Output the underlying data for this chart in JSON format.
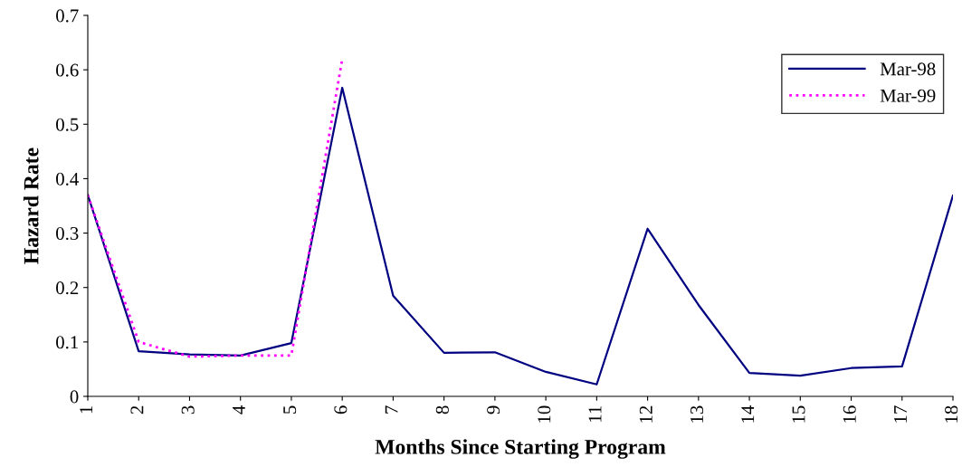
{
  "chart_data": {
    "type": "line",
    "xlabel": "Months Since Starting Program",
    "ylabel": "Hazard Rate",
    "categories": [
      "1",
      "2",
      "3",
      "4",
      "5",
      "6",
      "7",
      "8",
      "9",
      "10",
      "11",
      "12",
      "13",
      "14",
      "15",
      "16",
      "17",
      "18"
    ],
    "series": [
      {
        "name": "Mar-98",
        "color": "#000080",
        "line_style": "solid",
        "values": [
          0.37,
          0.083,
          0.077,
          0.075,
          0.098,
          0.567,
          0.185,
          0.08,
          0.081,
          0.045,
          0.022,
          0.308,
          0.168,
          0.043,
          0.038,
          0.052,
          0.055,
          0.369
        ]
      },
      {
        "name": "Mar-99",
        "color": "#ff00ff",
        "line_style": "dotted",
        "values": [
          0.37,
          0.1,
          0.073,
          0.075,
          0.075,
          0.62,
          null,
          null,
          null,
          null,
          null,
          null,
          null,
          null,
          null,
          null,
          null,
          null
        ]
      }
    ],
    "ylim": [
      0,
      0.7
    ],
    "yticks": [
      0,
      0.1,
      0.2,
      0.3,
      0.4,
      0.5,
      0.6,
      0.7
    ],
    "grid": false,
    "legend": "right",
    "marker": "none"
  }
}
